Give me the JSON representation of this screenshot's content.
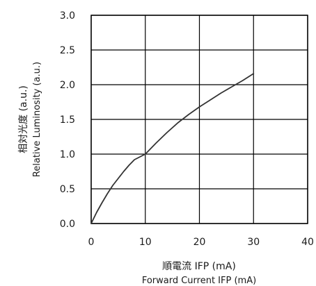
{
  "chart_data": {
    "type": "line",
    "title": "",
    "xlabel_jp": "順電流 IFP (mA)",
    "xlabel": "Forward Current IFP (mA)",
    "ylabel_jp": "相対光度 (a.u.)",
    "ylabel": "Relative Luminosity (a.u.)",
    "xlim": [
      0,
      40
    ],
    "ylim": [
      0.0,
      3.0
    ],
    "xticks": [
      "0",
      "10",
      "20",
      "30",
      "40"
    ],
    "yticks": [
      "0.0",
      "0.5",
      "1.0",
      "1.5",
      "2.0",
      "2.5",
      "3.0"
    ],
    "grid": true,
    "line_color": "#333333",
    "grid_color": "#000000",
    "series": [
      {
        "x": [
          0,
          1,
          2,
          3,
          4,
          5,
          6,
          7,
          8,
          9,
          10,
          12,
          14,
          16,
          18,
          20,
          22,
          24,
          26,
          28,
          30
        ],
        "values": [
          0.0,
          0.16,
          0.3,
          0.43,
          0.55,
          0.65,
          0.75,
          0.84,
          0.92,
          0.96,
          1.0,
          1.16,
          1.31,
          1.45,
          1.57,
          1.68,
          1.78,
          1.88,
          1.97,
          2.06,
          2.16
        ]
      }
    ]
  }
}
